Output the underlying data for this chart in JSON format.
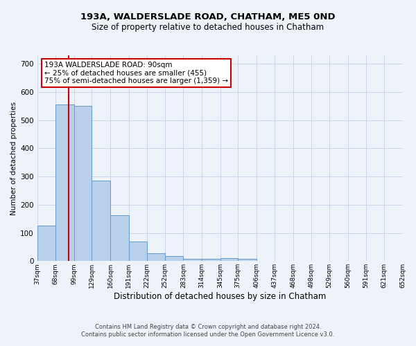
{
  "title1": "193A, WALDERSLADE ROAD, CHATHAM, ME5 0ND",
  "title2": "Size of property relative to detached houses in Chatham",
  "xlabel": "Distribution of detached houses by size in Chatham",
  "ylabel": "Number of detached properties",
  "footer1": "Contains HM Land Registry data © Crown copyright and database right 2024.",
  "footer2": "Contains public sector information licensed under the Open Government Licence v3.0.",
  "bin_edges": [
    37,
    68,
    99,
    129,
    160,
    191,
    222,
    252,
    283,
    314,
    345,
    375,
    406,
    437,
    468,
    498,
    529,
    560,
    591,
    621,
    652
  ],
  "bar_heights": [
    125,
    555,
    550,
    285,
    163,
    70,
    28,
    17,
    7,
    7,
    10,
    9,
    0,
    0,
    0,
    0,
    0,
    0,
    0,
    0
  ],
  "bar_color": "#b8d0ea",
  "bar_edge_color": "#6699cc",
  "grid_color": "#ccd5e8",
  "background_color": "#eef2f9",
  "vline_x": 90,
  "vline_color": "#cc0000",
  "annotation_text": "193A WALDERSLADE ROAD: 90sqm\n← 25% of detached houses are smaller (455)\n75% of semi-detached houses are larger (1,359) →",
  "annotation_box_color": "#ffffff",
  "annotation_box_edge": "#cc0000",
  "ylim": [
    0,
    730
  ],
  "yticks": [
    0,
    100,
    200,
    300,
    400,
    500,
    600,
    700
  ],
  "title1_fontsize": 9.5,
  "title2_fontsize": 8.5,
  "xlabel_fontsize": 8.5,
  "ylabel_fontsize": 7.5,
  "footer_fontsize": 6.0,
  "ann_fontsize": 7.5
}
